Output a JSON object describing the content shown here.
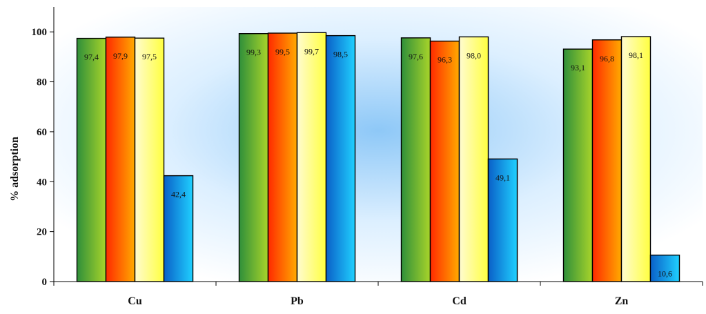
{
  "chart_data": {
    "type": "bar",
    "title": "",
    "xlabel": "",
    "ylabel": "% adsorption",
    "ylim": [
      0,
      110
    ],
    "yticks": [
      0,
      20,
      40,
      60,
      80,
      100
    ],
    "categories": [
      "Cu",
      "Pb",
      "Cd",
      "Zn"
    ],
    "series": [
      {
        "values": [
          97.4,
          99.3,
          97.6,
          93.1
        ],
        "labels": [
          "97,4",
          "99,3",
          "97,6",
          "93,1"
        ],
        "color": "#6fae3a"
      },
      {
        "values": [
          97.9,
          99.5,
          96.3,
          96.8
        ],
        "labels": [
          "97,9",
          "99,5",
          "96,3",
          "96,8"
        ],
        "color": "#ff6a00"
      },
      {
        "values": [
          97.5,
          99.7,
          98.0,
          98.1
        ],
        "labels": [
          "97,5",
          "99,7",
          "98,0",
          "98,1"
        ],
        "color": "#ffff99"
      },
      {
        "values": [
          42.4,
          98.5,
          49.1,
          10.6
        ],
        "labels": [
          "42,4",
          "98,5",
          "49,1",
          "10,6"
        ],
        "color": "#1aa3e8"
      }
    ],
    "legend": "none",
    "grid": false,
    "background": "radial blue-to-white gradient"
  }
}
